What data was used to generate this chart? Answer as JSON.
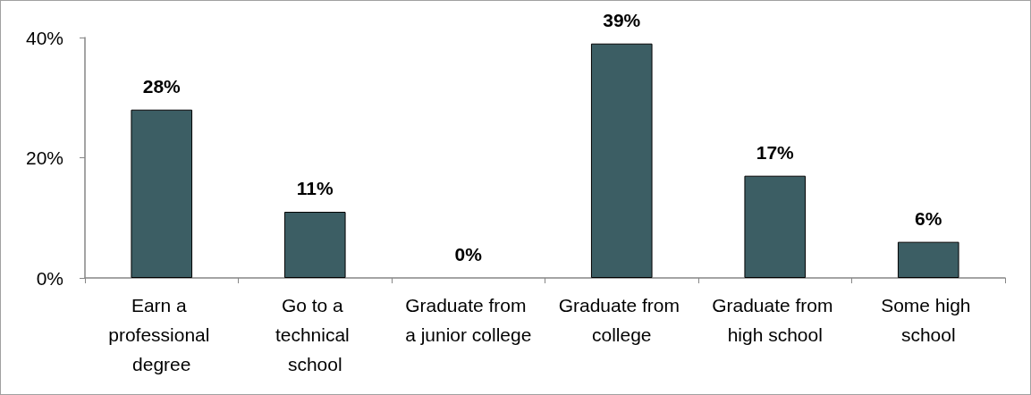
{
  "chart_data": {
    "type": "bar",
    "categories": [
      "Earn a professional degree",
      "Go to a technical school",
      "Graduate from a junior college",
      "Graduate from college",
      "Graduate from high school",
      "Some high school"
    ],
    "values": [
      28,
      11,
      0,
      39,
      17,
      6
    ],
    "color": "#3c5e64",
    "ylim": [
      0,
      40
    ],
    "yticks": [
      {
        "value": 0,
        "label": "0%"
      },
      {
        "value": 20,
        "label": "20%"
      },
      {
        "value": 40,
        "label": "40%"
      }
    ],
    "value_labels": [
      "28%",
      "11%",
      "0%",
      "39%",
      "17%",
      "6%"
    ]
  }
}
